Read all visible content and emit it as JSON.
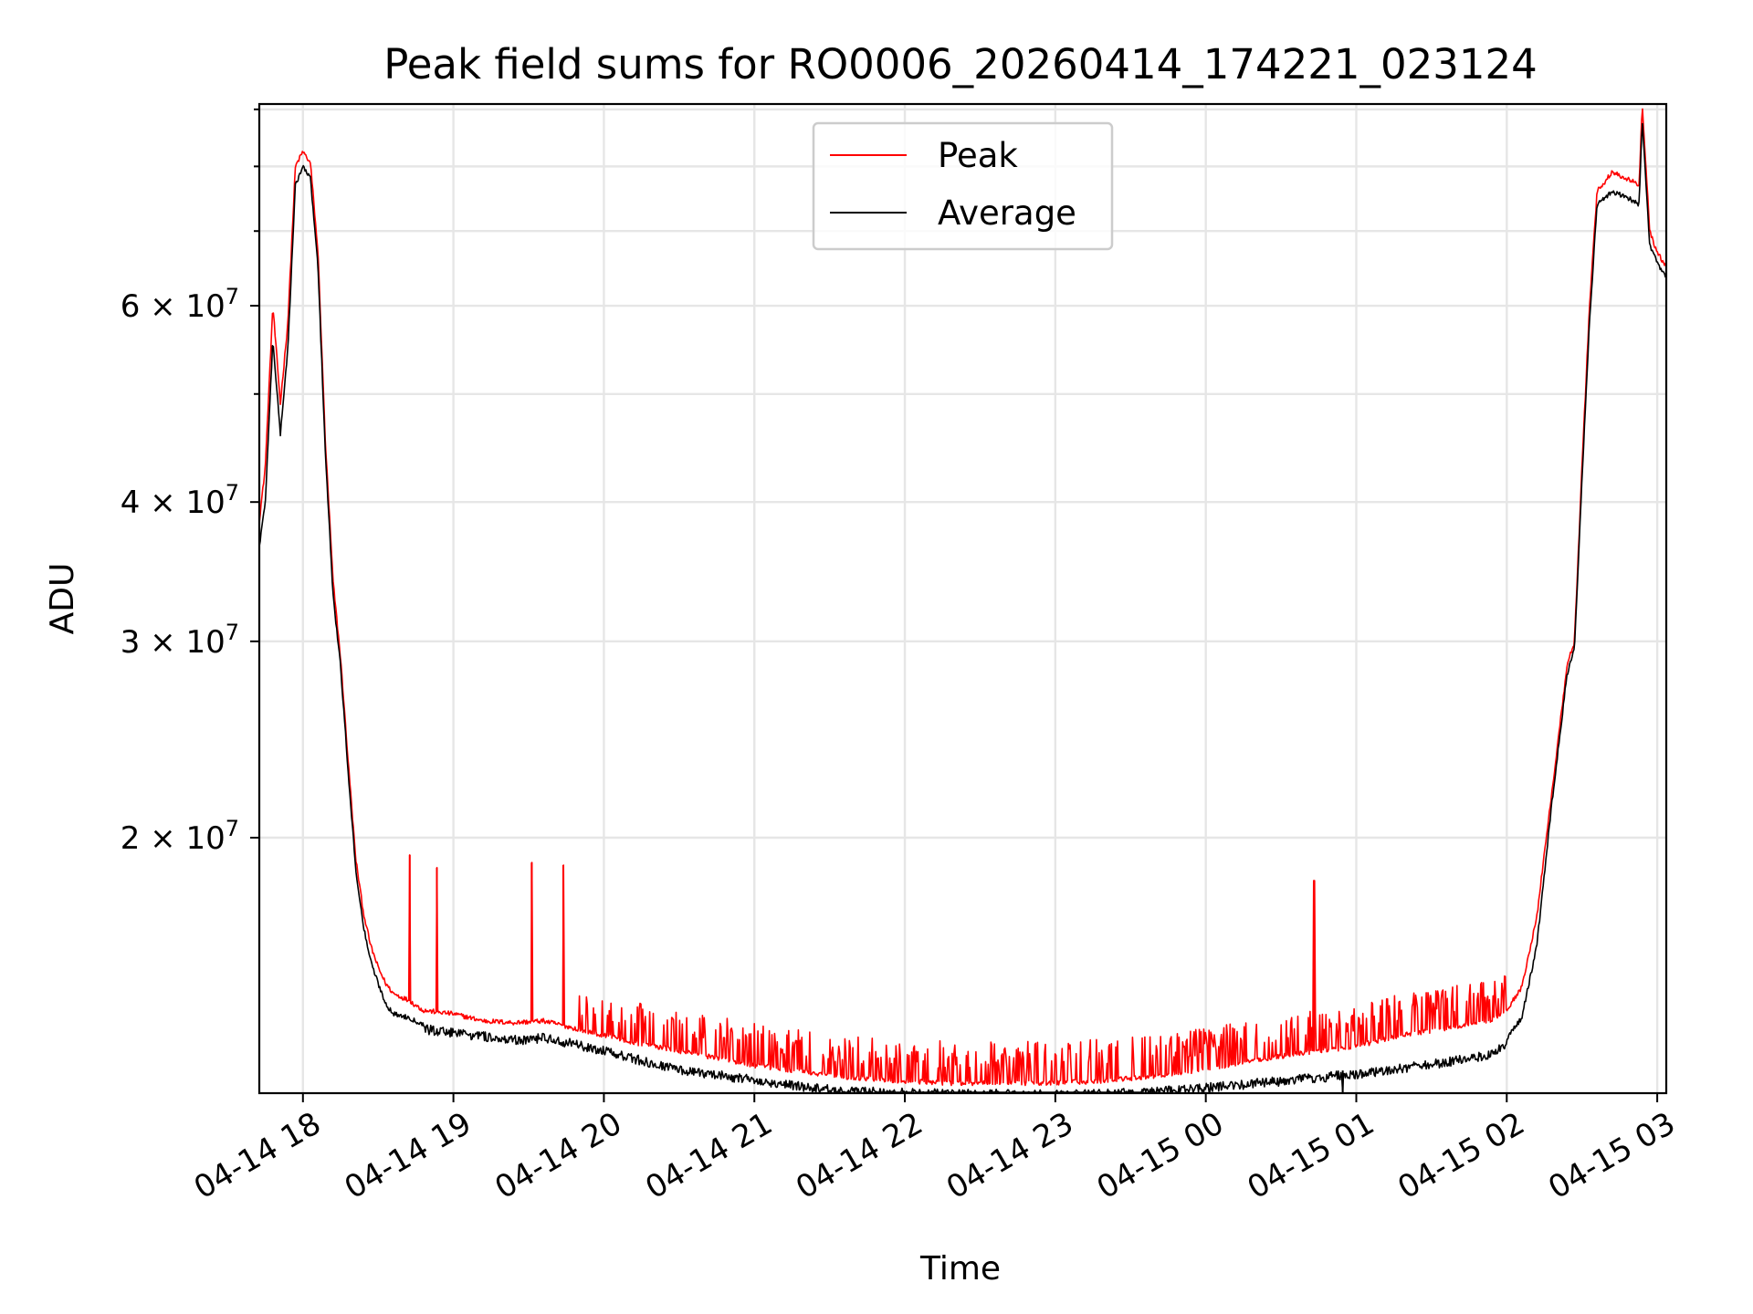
{
  "chart_data": {
    "type": "line",
    "title": "Peak field sums for RO0006_20260414_174221_023124",
    "xlabel": "Time",
    "ylabel": "ADU",
    "yscale": "log",
    "xlim_hours": [
      17.71,
      27.06
    ],
    "ylim": [
      11800000,
      91000000
    ],
    "x_ticks": [
      {
        "t": 18,
        "label": "04-14 18"
      },
      {
        "t": 19,
        "label": "04-14 19"
      },
      {
        "t": 20,
        "label": "04-14 20"
      },
      {
        "t": 21,
        "label": "04-14 21"
      },
      {
        "t": 22,
        "label": "04-14 22"
      },
      {
        "t": 23,
        "label": "04-14 23"
      },
      {
        "t": 24,
        "label": "04-15 00"
      },
      {
        "t": 25,
        "label": "04-15 01"
      },
      {
        "t": 26,
        "label": "04-15 02"
      },
      {
        "t": 27,
        "label": "04-15 03"
      }
    ],
    "y_ticks": [
      {
        "value": 20000000,
        "label": "2 × 10",
        "exp": "7"
      },
      {
        "value": 30000000,
        "label": "3 × 10",
        "exp": "7"
      },
      {
        "value": 40000000,
        "label": "4 × 10",
        "exp": "7"
      },
      {
        "value": 60000000,
        "label": "6 × 10",
        "exp": "7"
      }
    ],
    "y_minor_ticks": [
      50000000,
      70000000,
      80000000,
      90000000
    ],
    "legend_position": "top-center",
    "series": [
      {
        "name": "Peak",
        "color": "#ff0000",
        "x": [
          17.71,
          17.75,
          17.8,
          17.85,
          17.9,
          17.95,
          18.0,
          18.05,
          18.1,
          18.15,
          18.2,
          18.25,
          18.3,
          18.35,
          18.4,
          18.45,
          18.5,
          18.55,
          18.6,
          18.7,
          18.8,
          19.0,
          19.2,
          19.4,
          19.6,
          19.8,
          20.0,
          20.2,
          20.4,
          20.6,
          20.8,
          21.0,
          21.2,
          21.4,
          21.6,
          21.8,
          22.0,
          22.3,
          22.6,
          23.0,
          23.3,
          23.6,
          24.0,
          24.3,
          24.6,
          25.0,
          25.3,
          25.6,
          25.9,
          26.0,
          26.1,
          26.2,
          26.3,
          26.4,
          26.45,
          26.5,
          26.55,
          26.6,
          26.7,
          26.8,
          26.88,
          26.9,
          26.95,
          27.0,
          27.06
        ],
        "y": [
          38500000,
          43000000,
          60000000,
          49000000,
          58000000,
          80000000,
          82500000,
          80500000,
          67000000,
          45000000,
          34000000,
          29000000,
          23500000,
          19200000,
          17200000,
          16000000,
          15300000,
          14800000,
          14500000,
          14300000,
          14000000,
          13900000,
          13700000,
          13650000,
          13700000,
          13500000,
          13300000,
          13100000,
          12950000,
          12800000,
          12650000,
          12500000,
          12400000,
          12300000,
          12200000,
          12150000,
          12100000,
          12050000,
          12050000,
          12050000,
          12100000,
          12200000,
          12400000,
          12600000,
          12800000,
          13000000,
          13300000,
          13500000,
          13700000,
          14000000,
          14700000,
          17000000,
          22000000,
          28500000,
          30000000,
          43000000,
          60000000,
          76000000,
          79000000,
          78000000,
          77000000,
          91000000,
          70000000,
          67000000,
          65000000
        ]
      },
      {
        "name": "Average",
        "color": "#000000",
        "x": [
          17.71,
          17.75,
          17.8,
          17.85,
          17.9,
          17.95,
          18.0,
          18.05,
          18.1,
          18.15,
          18.2,
          18.25,
          18.3,
          18.35,
          18.4,
          18.45,
          18.5,
          18.55,
          18.6,
          18.7,
          18.8,
          19.0,
          19.2,
          19.4,
          19.6,
          19.8,
          20.0,
          20.2,
          20.4,
          20.6,
          20.8,
          21.0,
          21.2,
          21.4,
          21.6,
          21.8,
          22.0,
          22.3,
          22.6,
          23.0,
          23.3,
          23.6,
          24.0,
          24.3,
          24.6,
          25.0,
          25.3,
          25.6,
          25.9,
          26.0,
          26.1,
          26.2,
          26.3,
          26.4,
          26.45,
          26.5,
          26.55,
          26.6,
          26.7,
          26.8,
          26.88,
          26.9,
          26.95,
          27.0,
          27.06
        ],
        "y": [
          36500000,
          40000000,
          56000000,
          46000000,
          55000000,
          77000000,
          80000000,
          78000000,
          65000000,
          44000000,
          33000000,
          28500000,
          23000000,
          18800000,
          16700000,
          15500000,
          14800000,
          14200000,
          13900000,
          13800000,
          13600000,
          13500000,
          13400000,
          13300000,
          13350000,
          13200000,
          13000000,
          12800000,
          12600000,
          12450000,
          12350000,
          12250000,
          12150000,
          12050000,
          11950000,
          11950000,
          11920000,
          11900000,
          11900000,
          11870000,
          11900000,
          11950000,
          12050000,
          12150000,
          12250000,
          12400000,
          12550000,
          12700000,
          12900000,
          13200000,
          13800000,
          16000000,
          21500000,
          28000000,
          29500000,
          42000000,
          58000000,
          74000000,
          76000000,
          75000000,
          74000000,
          88000000,
          68000000,
          65500000,
          63500000
        ]
      }
    ],
    "spikes": [
      {
        "series": "Peak",
        "t": 18.71,
        "value": 19300000
      },
      {
        "series": "Peak",
        "t": 18.89,
        "value": 18800000
      },
      {
        "series": "Peak",
        "t": 19.52,
        "value": 19000000
      },
      {
        "series": "Peak",
        "t": 19.73,
        "value": 18900000
      },
      {
        "series": "Peak",
        "t": 24.72,
        "value": 18300000
      },
      {
        "series": "Average",
        "t": 24.91,
        "value": 11700000
      }
    ]
  }
}
